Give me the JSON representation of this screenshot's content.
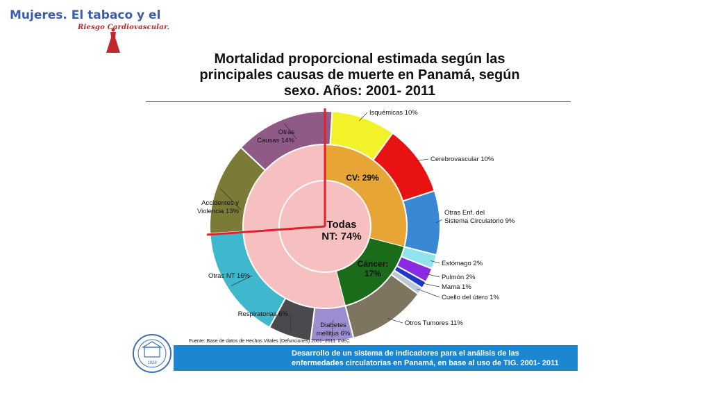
{
  "brand": {
    "title": "Mujeres. El tabaco y el",
    "subtitle": "Riesgo Cardiovascular."
  },
  "title_lines": [
    "Mortalidad proporcional estimada según las",
    "principales causas de muerte en Panamá, según",
    "sexo. Años: 2001- 2011"
  ],
  "source": "Fuente: Base de datos de Hechos Vitales (Defunciones) 2001- 2011. INEC",
  "banner_lines": [
    "Desarrollo de un sistema de indicadores para el análisis de las",
    "enfermedades circulatorias en Panamá, en base al uso de TIG. 2001- 2011"
  ],
  "seal_year": "1928",
  "chart_data": {
    "type": "sunburst",
    "center": {
      "label_lines": [
        "Todas",
        "NT: 74%"
      ],
      "value": 74,
      "color": "#f6c0c0"
    },
    "inner_ring": [
      {
        "name": "CV",
        "label_lines": [
          "CV: 29%"
        ],
        "value": 29,
        "color": "#e7a535"
      },
      {
        "name": "Cáncer",
        "label_lines": [
          "Cáncer:",
          "17%"
        ],
        "value": 17,
        "color": "#1a6b1a"
      }
    ],
    "outer_ring": [
      {
        "label_lines": [
          "Isquémicas 10%"
        ],
        "value": 10,
        "color": "#f2f22a",
        "group": "CV"
      },
      {
        "label_lines": [
          "Cerebrovascular 10%"
        ],
        "value": 10,
        "color": "#e81212",
        "group": "CV"
      },
      {
        "label_lines": [
          "Otras Enf. del",
          "Sistema Circulatorio 9%"
        ],
        "value": 9,
        "color": "#3a88d4",
        "group": "CV"
      },
      {
        "label_lines": [
          "Estómago 2%"
        ],
        "value": 2,
        "color": "#90e4ee",
        "group": "Cáncer"
      },
      {
        "label_lines": [
          "Pulmón 2%"
        ],
        "value": 2,
        "color": "#8a2be2",
        "group": "Cáncer"
      },
      {
        "label_lines": [
          "Mama 1%"
        ],
        "value": 1,
        "color": "#2038c8",
        "group": "Cáncer"
      },
      {
        "label_lines": [
          "Cuello del útero 1%"
        ],
        "value": 1,
        "color": "#b8c8d4",
        "group": "Cáncer"
      },
      {
        "label_lines": [
          "Otros Tumores 11%"
        ],
        "value": 11,
        "color": "#7d7560",
        "group": "Cáncer"
      },
      {
        "label_lines": [
          "Diabetes",
          "mellitus 6%"
        ],
        "value": 6,
        "color": "#9c8cd0",
        "group": "Otras NT"
      },
      {
        "label_lines": [
          "Respiratorias 6%"
        ],
        "value": 6,
        "color": "#4a4a4e",
        "group": "Otras NT"
      },
      {
        "label_lines": [
          "Otras NT 16%"
        ],
        "value": 16,
        "color": "#3fb7cd",
        "group": "Otras NT"
      },
      {
        "label_lines": [
          "Accidentes y",
          "Violencia 13%"
        ],
        "value": 13,
        "color": "#7b7a36",
        "group": "No NT"
      },
      {
        "label_lines": [
          "Otras",
          "Causas 14%"
        ],
        "value": 14,
        "color": "#8f5a86",
        "group": "No NT"
      }
    ],
    "highlight_color": "#e0202a"
  }
}
